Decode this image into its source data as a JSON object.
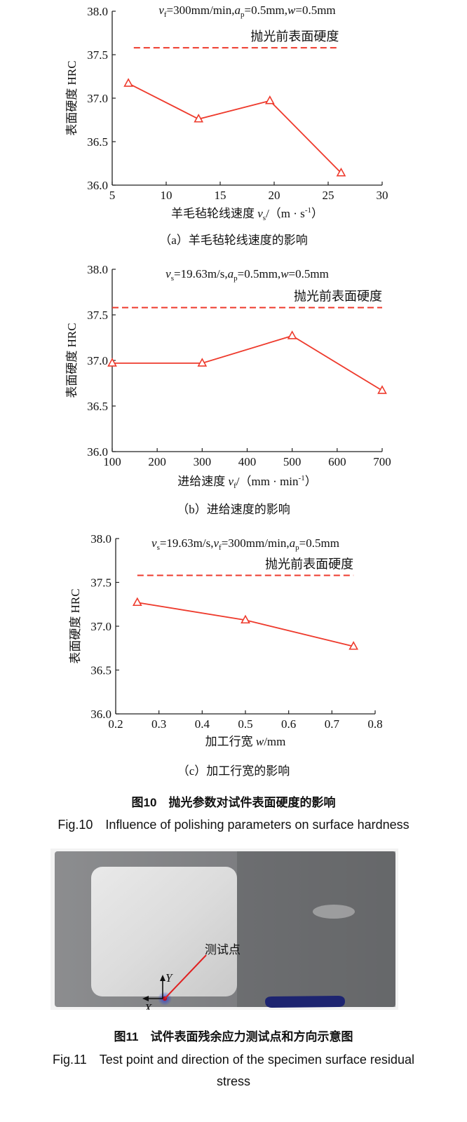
{
  "reference_line_label": "抛光前表面硬度",
  "chart_data": [
    {
      "type": "line",
      "params": {
        "v1": "v",
        "s1": "f",
        "e1": "=300mm/min,",
        "v2": "a",
        "s2": "p",
        "e2": "=0.5mm,",
        "v3": "w",
        "s3": "",
        "e3": "=0.5mm"
      },
      "ylabel": "表面硬度 HRC",
      "xlabel": {
        "pre": "羊毛毡轮线速度 ",
        "var": "v",
        "sub": "s",
        "post": "/（m · s",
        "sup": "-1",
        "close": "）"
      },
      "xlim": [
        5,
        30
      ],
      "xticks": [
        5,
        10,
        15,
        20,
        25,
        30
      ],
      "ylim": [
        36.0,
        38.0
      ],
      "yticks": [
        "36.0",
        "36.5",
        "37.0",
        "37.5",
        "38.0"
      ],
      "x": [
        6.5,
        13,
        19.6,
        26.2
      ],
      "series": [
        {
          "values": [
            37.17,
            36.76,
            36.97,
            36.14
          ]
        }
      ],
      "reference": {
        "value": 37.58,
        "x_from": 7.0,
        "x_to": 26.0
      },
      "caption": "（a）羊毛毡轮线速度的影响"
    },
    {
      "type": "line",
      "params": {
        "v1": "v",
        "s1": "s",
        "e1": "=19.63m/s,",
        "v2": "a",
        "s2": "p",
        "e2": "=0.5mm,",
        "v3": "w",
        "s3": "",
        "e3": "=0.5mm"
      },
      "ylabel": "表面硬度 HRC",
      "xlabel": {
        "pre": "进给速度 ",
        "var": "v",
        "sub": "f",
        "post": "/（mm · min",
        "sup": "-1",
        "close": "）"
      },
      "xlim": [
        100,
        700
      ],
      "xticks": [
        100,
        200,
        300,
        400,
        500,
        600,
        700
      ],
      "ylim": [
        36.0,
        38.0
      ],
      "yticks": [
        "36.0",
        "36.5",
        "37.0",
        "37.5",
        "38.0"
      ],
      "x": [
        100,
        300,
        500,
        700
      ],
      "series": [
        {
          "values": [
            36.97,
            36.97,
            37.27,
            36.67
          ]
        }
      ],
      "reference": {
        "value": 37.58,
        "x_from": 100,
        "x_to": 700
      },
      "caption": "（b）进给速度的影响"
    },
    {
      "type": "line",
      "params": {
        "v1": "v",
        "s1": "s",
        "e1": "=19.63m/s,",
        "v2": "v",
        "s2": "f",
        "e2": "=300mm/min,",
        "v3": "a",
        "s3": "p",
        "e3": "=0.5mm"
      },
      "ylabel": "表面硬度 HRC",
      "xlabel": {
        "pre": "加工行宽 ",
        "var": "w",
        "sub": "",
        "post": "/mm",
        "sup": "",
        "close": ""
      },
      "xlim": [
        0.2,
        0.8
      ],
      "xticks": [
        "0.2",
        "0.3",
        "0.4",
        "0.5",
        "0.6",
        "0.7",
        "0.8"
      ],
      "ylim": [
        36.0,
        38.0
      ],
      "yticks": [
        "36.0",
        "36.5",
        "37.0",
        "37.5",
        "38.0"
      ],
      "x": [
        0.25,
        0.5,
        0.75
      ],
      "series": [
        {
          "values": [
            37.27,
            37.07,
            36.77
          ]
        }
      ],
      "reference": {
        "value": 37.58,
        "x_from": 0.25,
        "x_to": 0.75
      },
      "caption": "（c）加工行宽的影响"
    }
  ],
  "fig10": {
    "cn": "图10　抛光参数对试件表面硬度的影响",
    "en": "Fig.10　Influence of polishing parameters on surface hardness"
  },
  "fig11": {
    "label_point": "测试点",
    "axis_x": "X",
    "axis_y": "Y",
    "cn": "图11　试件表面残余应力测试点和方向示意图",
    "en_line1": "Fig.11　Test point and direction of the specimen surface residual",
    "en_line2": "stress"
  },
  "colors": {
    "series": "#ee3a2c",
    "axis": "#222222"
  }
}
